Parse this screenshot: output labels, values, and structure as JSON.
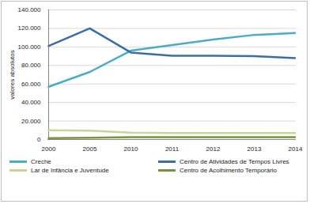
{
  "chart_data": {
    "type": "line",
    "y_label": "valores absolutos",
    "categories": [
      "2000",
      "2005",
      "2010",
      "2011",
      "2012",
      "2013",
      "2014"
    ],
    "series": [
      {
        "name": "Creche",
        "color": "#4bacc6",
        "values": [
          57000,
          73000,
          96000,
          102000,
          108000,
          113000,
          115000
        ]
      },
      {
        "name": "Centro de Atividades de Tempos Livres",
        "color": "#3a6ea8",
        "values": [
          101000,
          120000,
          94000,
          90500,
          90500,
          90000,
          88000
        ]
      },
      {
        "name": "Lar de Infância e Juventude",
        "color": "#c3d69b",
        "values": [
          10000,
          9500,
          7500,
          7000,
          7000,
          7000,
          7000
        ]
      },
      {
        "name": "Centro de Acolhimento Temporário",
        "color": "#77933c",
        "values": [
          1500,
          2000,
          2500,
          2500,
          2500,
          2500,
          2500
        ]
      }
    ],
    "ylim": [
      0,
      140000
    ],
    "yticks": [
      0,
      {
        "value": 20000,
        "label": "20.000"
      },
      {
        "value": 40000,
        "label": "40.000"
      },
      {
        "value": 60000,
        "label": "60.000"
      },
      {
        "value": 80000,
        "label": "80.000"
      },
      {
        "value": 100000,
        "label": "100.000"
      },
      {
        "value": 120000,
        "label": "120.000"
      },
      {
        "value": 140000,
        "label": "140.000"
      }
    ],
    "grid": true,
    "legend": "bottom"
  }
}
